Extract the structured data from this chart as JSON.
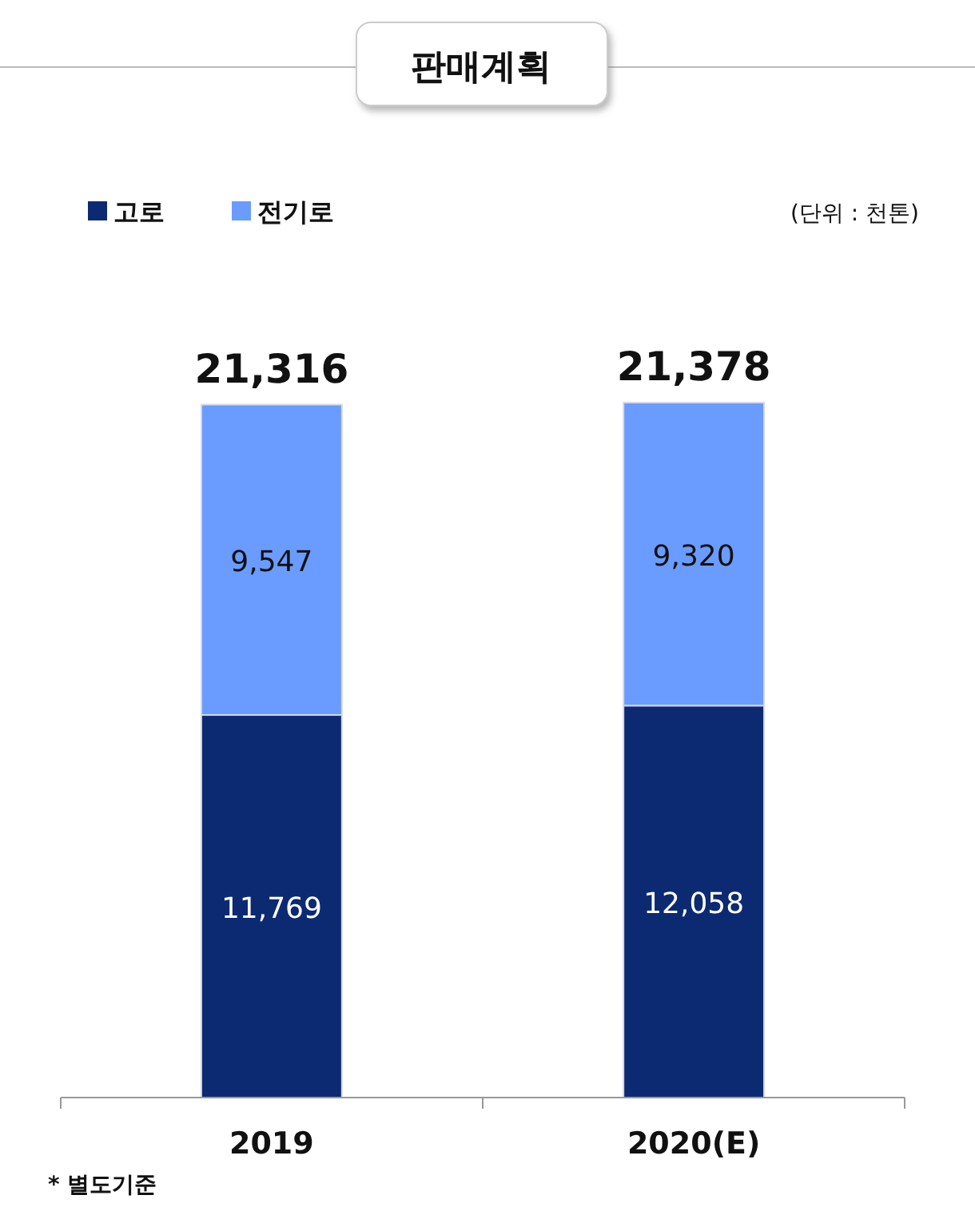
{
  "chart_data": {
    "type": "bar",
    "title": "판매계획",
    "categories": [
      "2019",
      "2020(E)"
    ],
    "stacked": true,
    "series": [
      {
        "name": "고로",
        "color": "#0c2a72",
        "values": [
          11769,
          12058
        ],
        "value_labels": [
          "11,769",
          "12,058"
        ]
      },
      {
        "name": "전기로",
        "color": "#6a9cff",
        "values": [
          9547,
          9320
        ],
        "value_labels": [
          "9,547",
          "9,320"
        ]
      }
    ],
    "totals": [
      "21,316",
      "21,378"
    ],
    "legend": "top left",
    "annotations": [
      "(단위 : 천톤)",
      "* 별도기준"
    ]
  }
}
